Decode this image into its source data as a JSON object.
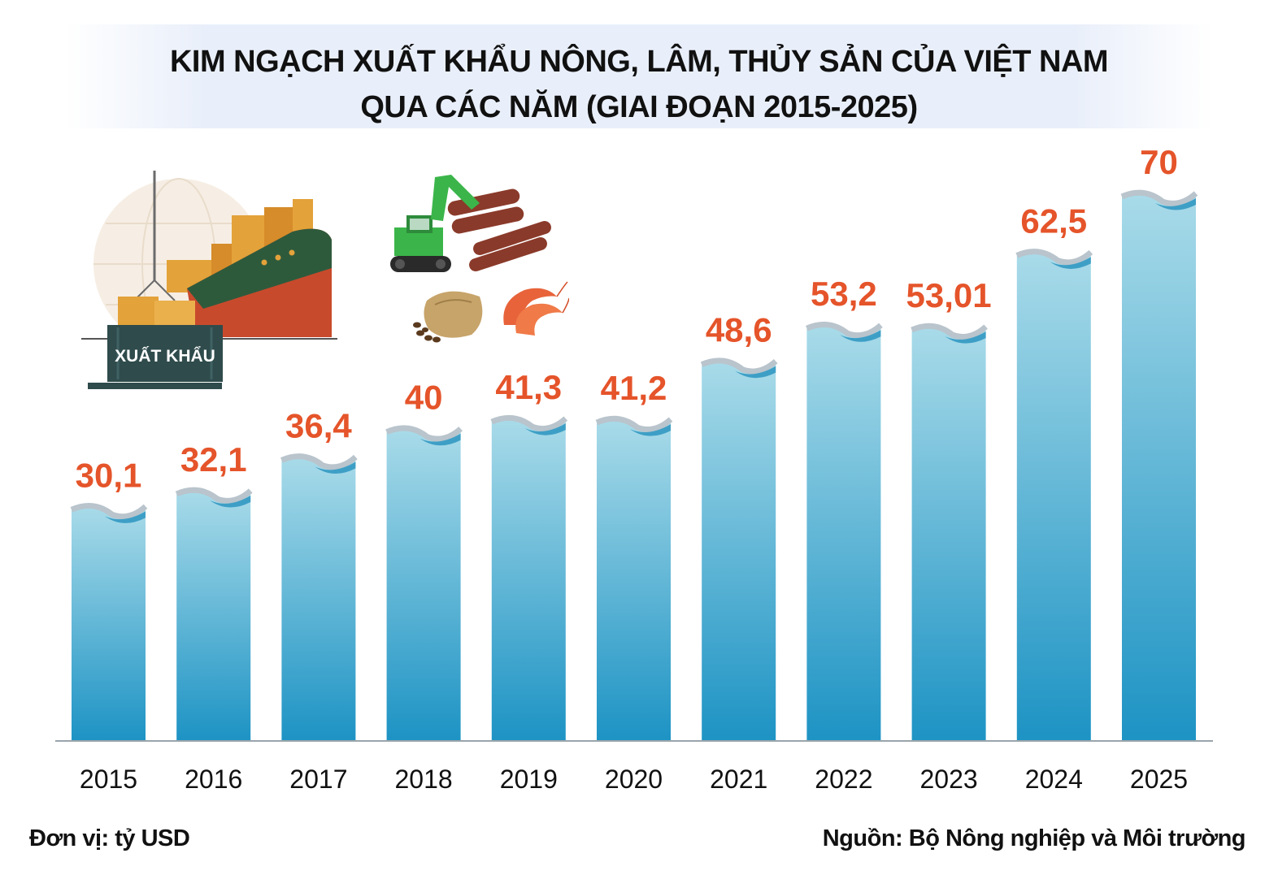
{
  "title": {
    "line1": "KIM NGẠCH XUẤT KHẨU NÔNG, LÂM, THỦY SẢN CỦA VIỆT NAM",
    "line2": "QUA CÁC NĂM (GIAI ĐOẠN 2015-2025)"
  },
  "illustrations": {
    "ship_label": "XUẤT KHẨU",
    "icons": [
      "cargo-ship-icon",
      "excavator-logs-icon",
      "coffee-sack-icon",
      "shrimp-icon"
    ]
  },
  "colors": {
    "bar_top": "#a9dbe9",
    "bar_bottom": "#1d93c4",
    "value_label": "#e5542a",
    "wave": "#b9c4cc",
    "wave_water": "#3e9fc6",
    "axis": "#9aa5ab"
  },
  "chart_data": {
    "type": "bar",
    "categories": [
      "2015",
      "2016",
      "2017",
      "2018",
      "2019",
      "2020",
      "2021",
      "2022",
      "2023",
      "2024",
      "2025"
    ],
    "values": [
      30.1,
      32.1,
      36.4,
      40,
      41.3,
      41.2,
      48.6,
      53.2,
      53.01,
      62.5,
      70
    ],
    "value_labels": [
      "30,1",
      "32,1",
      "36,4",
      "40",
      "41,3",
      "41,2",
      "48,6",
      "53,2",
      "53,01",
      "62,5",
      "70"
    ],
    "title": "KIM NGẠCH XUẤT KHẨU NÔNG, LÂM, THỦY SẢN CỦA VIỆT NAM QUA CÁC NĂM (GIAI ĐOẠN 2015-2025)",
    "xlabel": "",
    "ylabel": "",
    "ylim": [
      0,
      70
    ],
    "grid": false,
    "legend": "none"
  },
  "footer": {
    "unit": "Đơn vị: tỷ USD",
    "source": "Nguồn: Bộ Nông nghiệp và Môi trường"
  }
}
